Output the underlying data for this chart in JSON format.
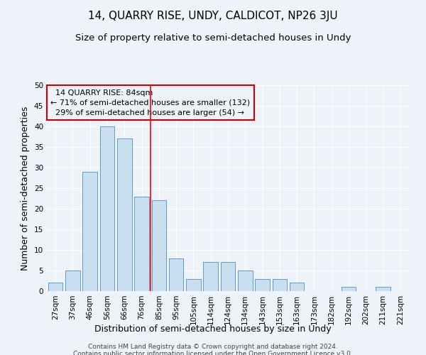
{
  "title": "14, QUARRY RISE, UNDY, CALDICOT, NP26 3JU",
  "subtitle": "Size of property relative to semi-detached houses in Undy",
  "xlabel": "Distribution of semi-detached houses by size in Undy",
  "ylabel": "Number of semi-detached properties",
  "categories": [
    "27sqm",
    "37sqm",
    "46sqm",
    "56sqm",
    "66sqm",
    "76sqm",
    "85sqm",
    "95sqm",
    "105sqm",
    "114sqm",
    "124sqm",
    "134sqm",
    "143sqm",
    "153sqm",
    "163sqm",
    "173sqm",
    "182sqm",
    "192sqm",
    "202sqm",
    "211sqm",
    "221sqm"
  ],
  "values": [
    2,
    5,
    29,
    40,
    37,
    23,
    22,
    8,
    3,
    7,
    7,
    5,
    3,
    3,
    2,
    0,
    0,
    1,
    0,
    1,
    0
  ],
  "bar_color": "#c9dff0",
  "bar_edge_color": "#5b9bd5",
  "marker_bin_index": 6,
  "marker_label": "14 QUARRY RISE: 84sqm",
  "smaller_pct": "71% of semi-detached houses are smaller (132)",
  "larger_pct": "29% of semi-detached houses are larger (54)",
  "annotation_box_color": "#cc0000",
  "ylim": [
    0,
    50
  ],
  "yticks": [
    0,
    5,
    10,
    15,
    20,
    25,
    30,
    35,
    40,
    45,
    50
  ],
  "footer1": "Contains HM Land Registry data © Crown copyright and database right 2024.",
  "footer2": "Contains public sector information licensed under the Open Government Licence v3.0.",
  "bg_color": "#eef2f9",
  "plot_bg_color": "#eef2f9",
  "grid_color": "#ffffff",
  "title_fontsize": 11,
  "subtitle_fontsize": 9.5,
  "axis_label_fontsize": 9,
  "tick_fontsize": 7.5,
  "footer_fontsize": 6.5,
  "annotation_fontsize": 8
}
